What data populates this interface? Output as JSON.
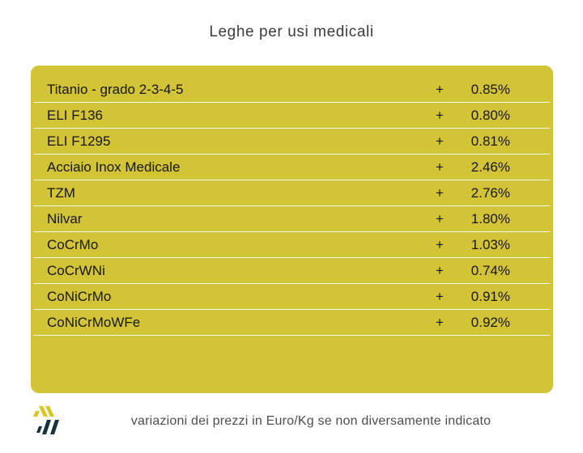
{
  "title": "Leghe per usi medicali",
  "table": {
    "rows": [
      {
        "name": "Titanio - grado 2-3-4-5",
        "sign": "+",
        "value": "0.85%"
      },
      {
        "name": "ELI F136",
        "sign": "+",
        "value": "0.80%"
      },
      {
        "name": "ELI F1295",
        "sign": "+",
        "value": "0.81%"
      },
      {
        "name": "Acciaio Inox Medicale",
        "sign": "+",
        "value": "2.46%"
      },
      {
        "name": "TZM",
        "sign": "+",
        "value": "2.76%"
      },
      {
        "name": "Nilvar",
        "sign": "+",
        "value": "1.80%"
      },
      {
        "name": "CoCrMo",
        "sign": "+",
        "value": "1.03%"
      },
      {
        "name": "CoCrWNi",
        "sign": "+",
        "value": "0.74%"
      },
      {
        "name": "CoNiCrMo",
        "sign": "+",
        "value": "0.91%"
      },
      {
        "name": "CoNiCrMoWFe",
        "sign": "+",
        "value": "0.92%"
      }
    ]
  },
  "footer": {
    "note": "variazioni dei prezzi in Euro/Kg se non diversamente indicato"
  },
  "chart_data": {
    "type": "table",
    "title": "Leghe per usi medicali",
    "categories": [
      "Titanio - grado 2-3-4-5",
      "ELI F136",
      "ELI F1295",
      "Acciaio Inox Medicale",
      "TZM",
      "Nilvar",
      "CoCrMo",
      "CoCrWNi",
      "CoNiCrMo",
      "CoNiCrMoWFe"
    ],
    "values": [
      0.85,
      0.8,
      0.81,
      2.46,
      2.76,
      1.8,
      1.03,
      0.74,
      0.91,
      0.92
    ],
    "value_unit": "% variation",
    "all_positive": true,
    "note": "variazioni dei prezzi in Euro/Kg se non diversamente indicato"
  },
  "colors": {
    "card_background": "#d2c337",
    "separator": "#fbfbf2",
    "table_text": "#161616",
    "title_text": "#3c3c3c",
    "note_text": "#4e4e4e",
    "logo_yellow": "#d6c71d",
    "logo_dark": "#16333f"
  }
}
